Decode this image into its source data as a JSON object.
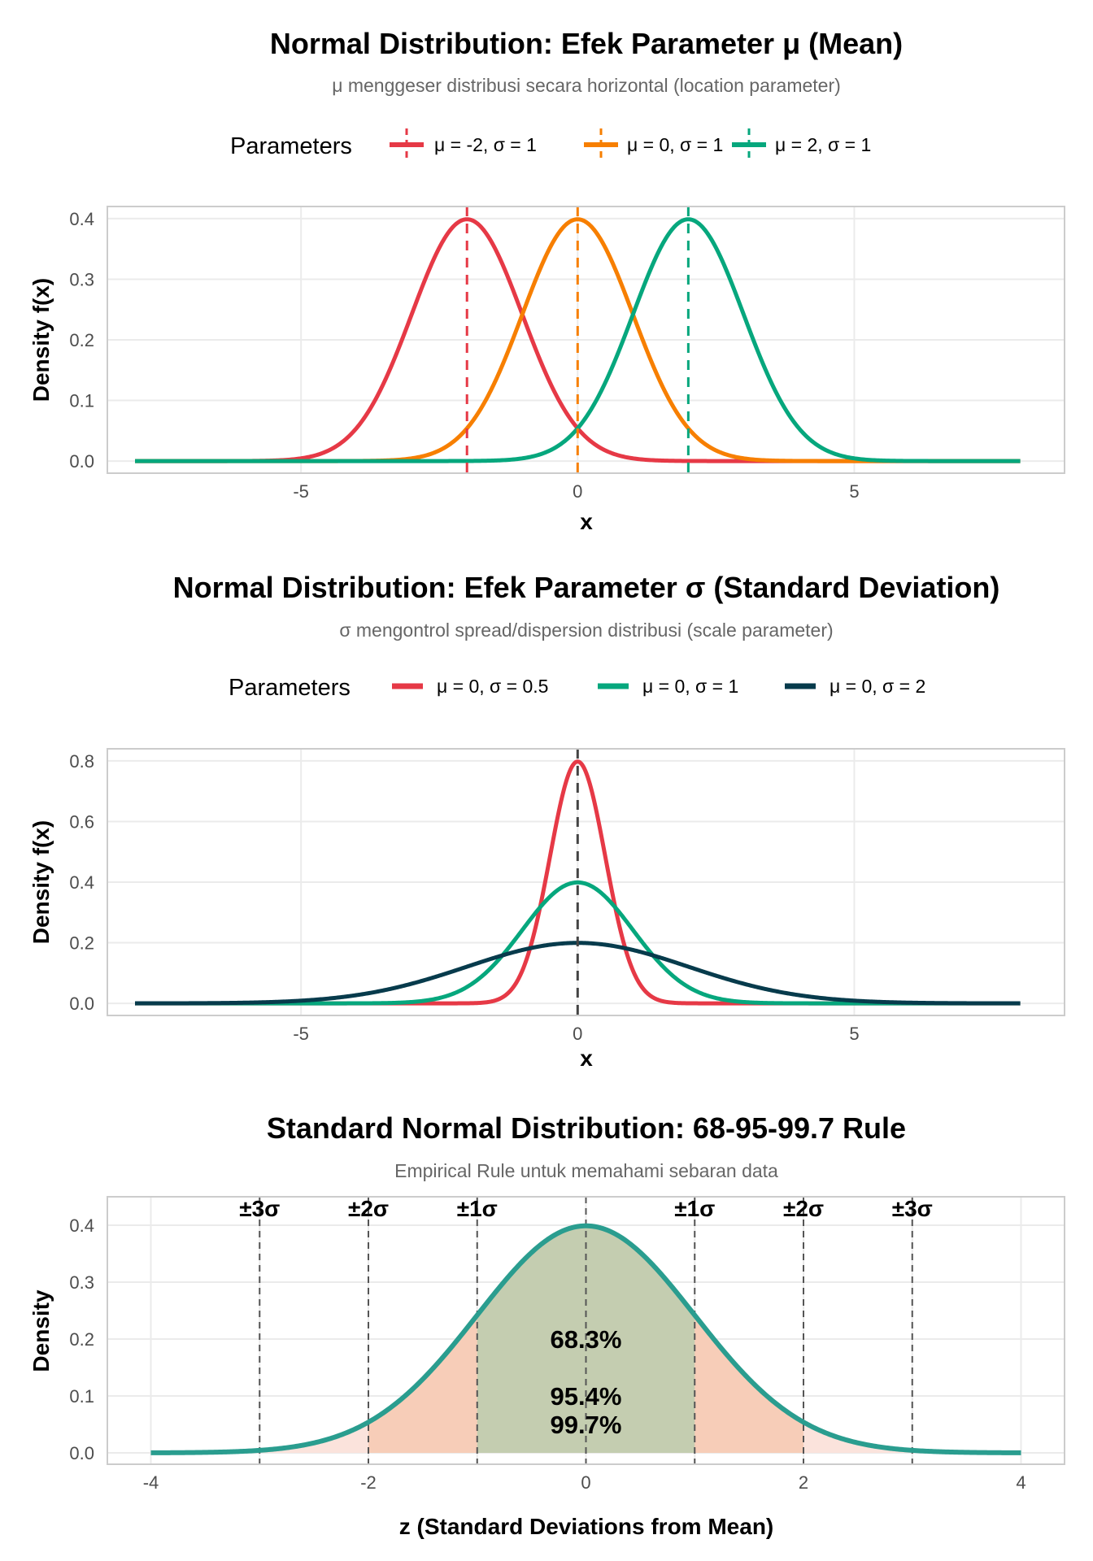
{
  "chart_data": [
    {
      "type": "line",
      "title": "Normal Distribution: Efek Parameter μ (Mean)",
      "subtitle": "μ menggeser distribusi secara horizontal (location parameter)",
      "xlabel": "x",
      "ylabel": "Density f(x)",
      "xlim": [
        -8.5,
        8.8
      ],
      "ylim": [
        -0.02,
        0.42
      ],
      "x_range": [
        -8,
        8
      ],
      "x_ticks": [
        -5,
        0,
        5
      ],
      "x_tick_labels": [
        "-5",
        "0",
        "5"
      ],
      "y_ticks": [
        0.0,
        0.1,
        0.2,
        0.3,
        0.4
      ],
      "y_tick_labels": [
        "0.0",
        "0.1",
        "0.2",
        "0.3",
        "0.4"
      ],
      "grid": true,
      "legend": {
        "title": "Parameters",
        "position": "top"
      },
      "series": [
        {
          "name": "μ = -2, σ = 1",
          "mu": -2,
          "sigma": 1,
          "color": "#E63946",
          "mean_line": "dashed",
          "peak_density": 0.399
        },
        {
          "name": "μ = 0, σ = 1",
          "mu": 0,
          "sigma": 1,
          "color": "#F77F00",
          "mean_line": "dashed",
          "peak_density": 0.399
        },
        {
          "name": "μ = 2, σ = 1",
          "mu": 2,
          "sigma": 1,
          "color": "#06A77D",
          "mean_line": "dashed",
          "peak_density": 0.399
        }
      ]
    },
    {
      "type": "line",
      "title": "Normal Distribution: Efek Parameter σ (Standard Deviation)",
      "subtitle": "σ mengontrol spread/dispersion distribusi (scale parameter)",
      "xlabel": "x",
      "ylabel": "Density f(x)",
      "xlim": [
        -8.5,
        8.8
      ],
      "ylim": [
        -0.04,
        0.84
      ],
      "x_range": [
        -8,
        8
      ],
      "x_ticks": [
        -5,
        0,
        5
      ],
      "x_tick_labels": [
        "-5",
        "0",
        "5"
      ],
      "y_ticks": [
        0.0,
        0.2,
        0.4,
        0.6,
        0.8
      ],
      "y_tick_labels": [
        "0.0",
        "0.2",
        "0.4",
        "0.6",
        "0.8"
      ],
      "grid": true,
      "legend": {
        "title": "Parameters",
        "position": "top"
      },
      "mean_line": {
        "x": 0,
        "style": "dashed",
        "color": "#444444"
      },
      "series": [
        {
          "name": "μ = 0, σ = 0.5",
          "mu": 0,
          "sigma": 0.5,
          "color": "#E63946",
          "peak_density": 0.798
        },
        {
          "name": "μ = 0, σ = 1",
          "mu": 0,
          "sigma": 1,
          "color": "#06A77D",
          "peak_density": 0.399
        },
        {
          "name": "μ = 0, σ = 2",
          "mu": 0,
          "sigma": 2,
          "color": "#073B4C",
          "peak_density": 0.199
        }
      ]
    },
    {
      "type": "area",
      "title": "Standard Normal Distribution: 68-95-99.7 Rule",
      "subtitle": "Empirical Rule untuk memahami sebaran data",
      "xlabel": "z (Standard Deviations from Mean)",
      "ylabel": "Density",
      "xlim": [
        -4.4,
        4.4
      ],
      "ylim": [
        -0.02,
        0.45
      ],
      "x_range": [
        -4,
        4
      ],
      "x_ticks": [
        -4,
        -2,
        0,
        2,
        4
      ],
      "x_tick_labels": [
        "-4",
        "-2",
        "0",
        "2",
        "4"
      ],
      "x_minor_ticks": [
        -3,
        -1,
        1,
        3
      ],
      "y_ticks": [
        0.0,
        0.1,
        0.2,
        0.3,
        0.4
      ],
      "y_tick_labels": [
        "0.0",
        "0.1",
        "0.2",
        "0.3",
        "0.4"
      ],
      "grid": true,
      "curve": {
        "mu": 0,
        "sigma": 1,
        "color": "#2A9D8F"
      },
      "shaded_regions": [
        {
          "from": -3,
          "to": 3,
          "color": "#FBE3DC",
          "label": "99.7%",
          "label_x": 0,
          "label_y": 0.05
        },
        {
          "from": -2,
          "to": 2,
          "color": "#F7CDB8",
          "label": "95.4%",
          "label_x": 0,
          "label_y": 0.1
        },
        {
          "from": -1,
          "to": 1,
          "color": "#C4CDB0",
          "label": "68.3%",
          "label_x": 0,
          "label_y": 0.2
        }
      ],
      "vlines": [
        {
          "x": -3,
          "label": "±3σ"
        },
        {
          "x": -2,
          "label": "±2σ"
        },
        {
          "x": -1,
          "label": "±1σ"
        },
        {
          "x": 0,
          "label": ""
        },
        {
          "x": 1,
          "label": "±1σ"
        },
        {
          "x": 2,
          "label": "±2σ"
        },
        {
          "x": 3,
          "label": "±3σ"
        }
      ],
      "vline_label_y": 0.43
    }
  ]
}
